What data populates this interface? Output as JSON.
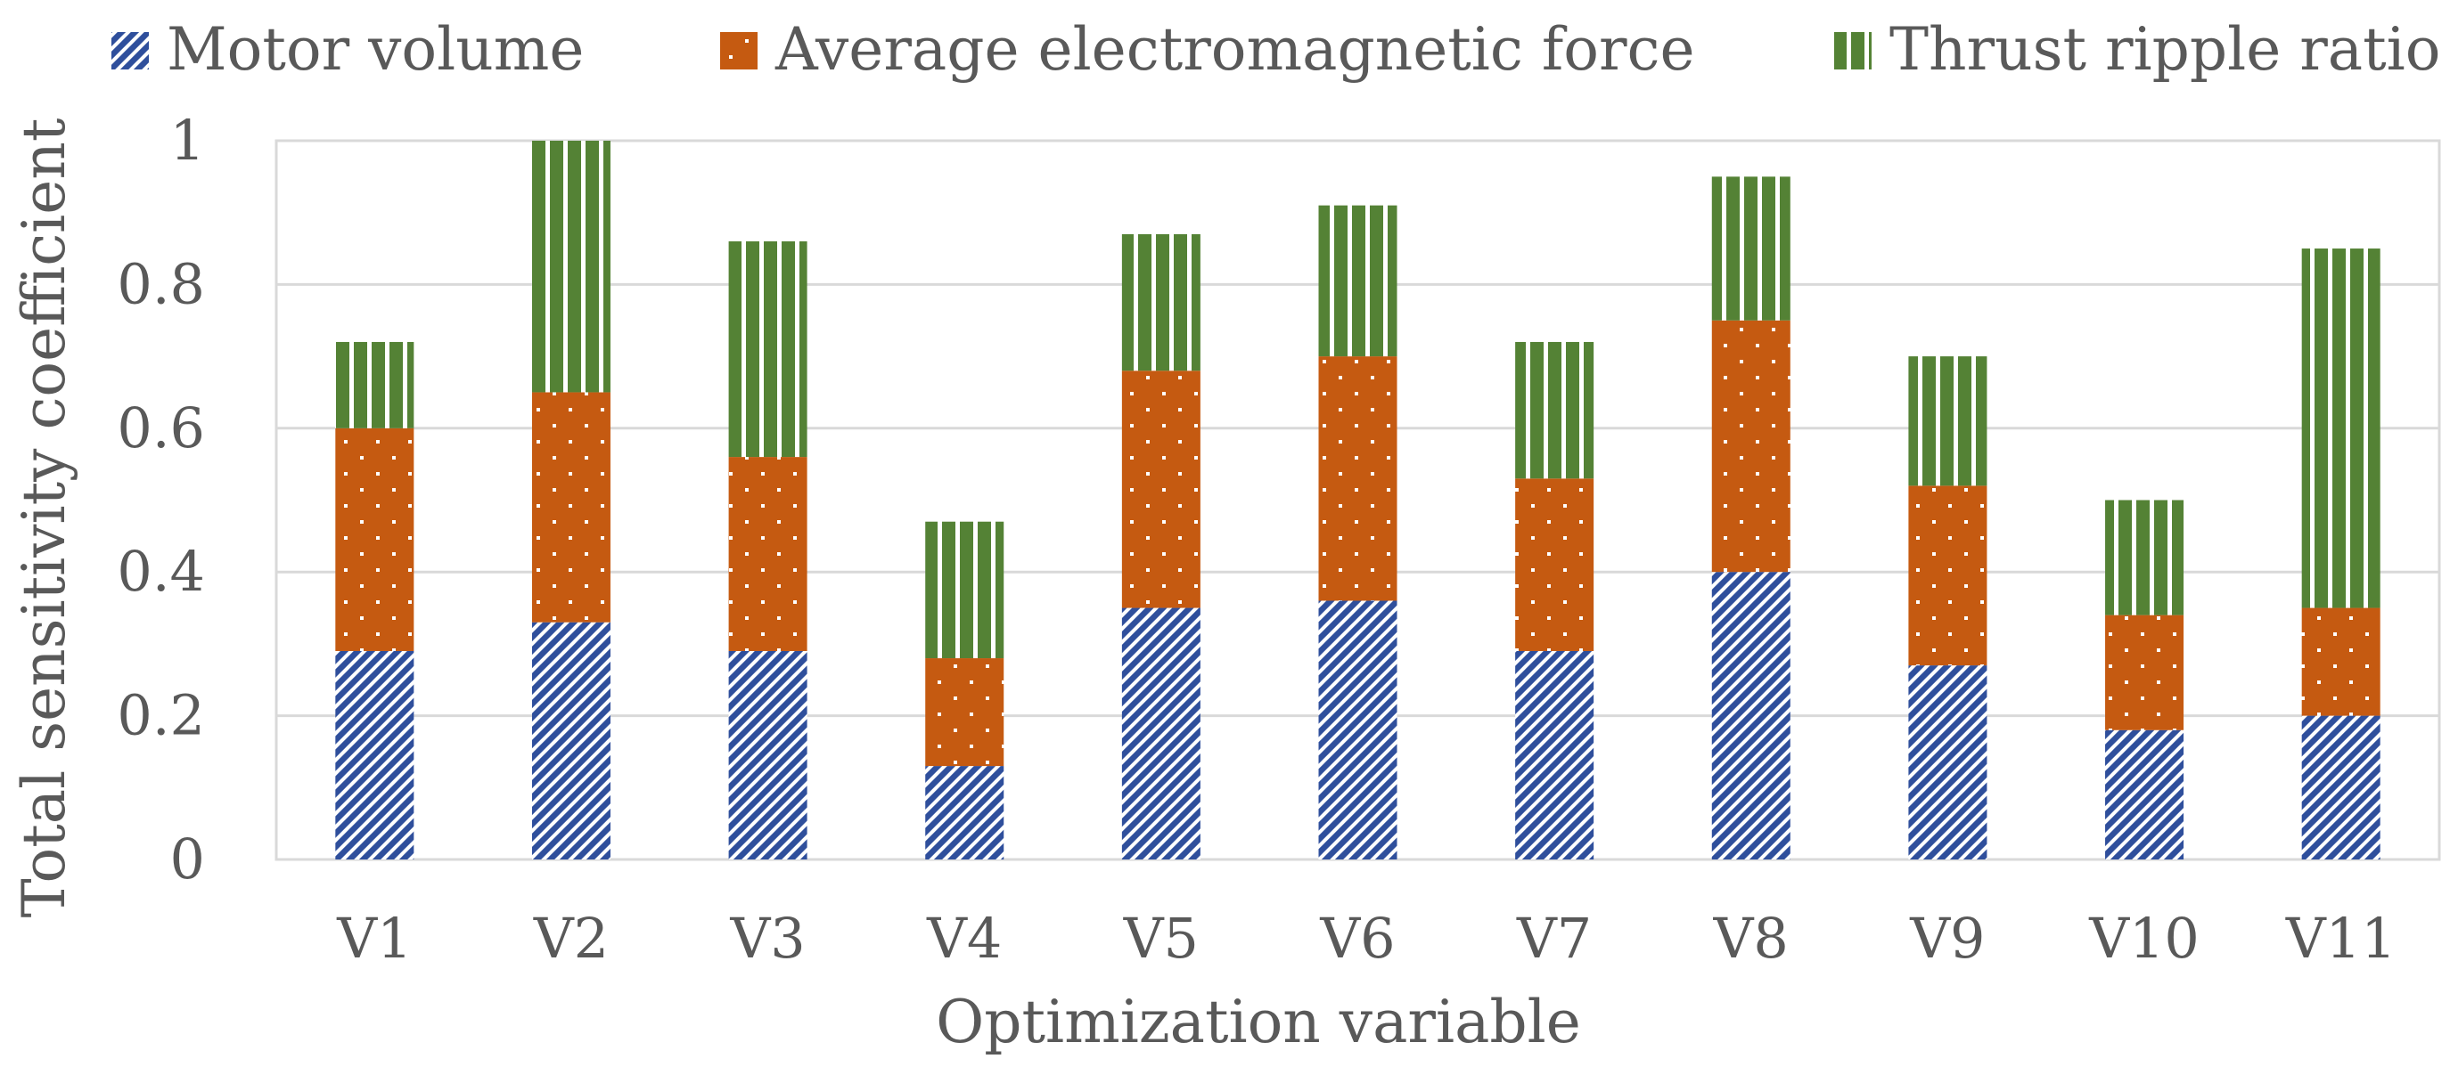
{
  "chart_data": {
    "type": "bar",
    "stacked": true,
    "xlabel": "Optimization variable",
    "ylabel": "Total sensitivity coefficient",
    "ylim": [
      0,
      1
    ],
    "yticks": [
      0,
      0.2,
      0.4,
      0.6,
      0.8,
      1
    ],
    "ytick_labels": [
      "0",
      "0.2",
      "0.4",
      "0.6",
      "0.8",
      "1"
    ],
    "grid": true,
    "legend_position": "top",
    "categories": [
      "V1",
      "V2",
      "V3",
      "V4",
      "V5",
      "V6",
      "V7",
      "V8",
      "V9",
      "V10",
      "V11"
    ],
    "series": [
      {
        "name": "Motor volume",
        "color": "#2F4F9C",
        "pattern": "diagonal-stripes",
        "values": [
          0.29,
          0.33,
          0.29,
          0.13,
          0.35,
          0.36,
          0.29,
          0.4,
          0.27,
          0.18,
          0.2
        ]
      },
      {
        "name": "Average electromagnetic force",
        "color": "#C55A11",
        "pattern": "dots",
        "values": [
          0.31,
          0.32,
          0.27,
          0.15,
          0.33,
          0.34,
          0.24,
          0.35,
          0.25,
          0.16,
          0.15
        ]
      },
      {
        "name": "Thrust ripple ratio",
        "color": "#548235",
        "pattern": "vertical-stripes",
        "values": [
          0.12,
          0.35,
          0.3,
          0.19,
          0.19,
          0.21,
          0.19,
          0.2,
          0.18,
          0.16,
          0.5
        ]
      }
    ]
  }
}
